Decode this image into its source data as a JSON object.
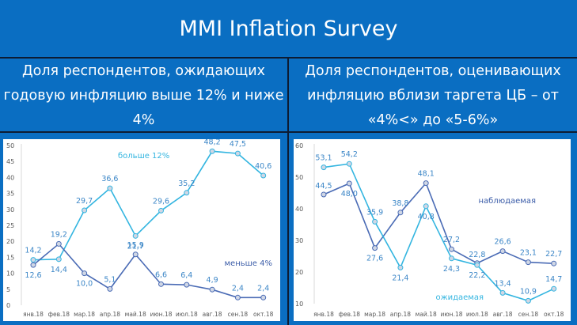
{
  "title": "MMI Inflation Survey",
  "left_header": "Доля респондентов, ожидающих годовую инфляцию выше 12% и ниже 4%",
  "right_header": "Доля респондентов, оценивающих инфляцию вблизи таргета ЦБ – от «4%<» до «5-6%»",
  "colors": {
    "background": "#0a6ec2",
    "light_series": "#33b5e0",
    "dark_series": "#4a6bb5",
    "label_text": "#3b86c7"
  },
  "chart_data": [
    {
      "type": "line",
      "categories": [
        "янв.18",
        "фев.18",
        "мар.18",
        "апр.18",
        "май.18",
        "июн.18",
        "июл.18",
        "авг.18",
        "сен.18",
        "окт.18"
      ],
      "ylim": [
        0,
        50
      ],
      "yticks": [
        0,
        5,
        10,
        15,
        20,
        25,
        30,
        35,
        40,
        45,
        50
      ],
      "grid": false,
      "series": [
        {
          "name": "больше 12%",
          "color": "#33b5e0",
          "values": [
            14.2,
            14.4,
            29.7,
            36.6,
            21.7,
            29.6,
            35.2,
            48.2,
            47.5,
            40.6
          ]
        },
        {
          "name": "меньше 4%",
          "color": "#4a6bb5",
          "values": [
            12.6,
            19.2,
            10.0,
            5.1,
            15.9,
            6.6,
            6.4,
            4.9,
            2.4,
            2.4
          ]
        }
      ],
      "value_labels": [
        [
          "14,2",
          "14,4",
          "29,7",
          "36,6",
          "21,7",
          "29,6",
          "35,2",
          "48,2",
          "47,5",
          "40,6"
        ],
        [
          "12,6",
          "19,2",
          "10,0",
          "5,1",
          "15,9",
          "6,6",
          "6,4",
          "4,9",
          "2,4",
          "2,4"
        ]
      ]
    },
    {
      "type": "line",
      "categories": [
        "янв.18",
        "фев.18",
        "мар.18",
        "апр.18",
        "май.18",
        "июн.18",
        "июл.18",
        "авг.18",
        "сен.18",
        "окт.18"
      ],
      "ylim": [
        10,
        60
      ],
      "yticks": [
        10,
        20,
        30,
        40,
        50,
        60
      ],
      "grid": false,
      "series": [
        {
          "name": "наблюдаемая",
          "color": "#4a6bb5",
          "values": [
            44.5,
            48.0,
            27.6,
            38.8,
            48.1,
            27.2,
            22.8,
            26.6,
            23.1,
            22.7
          ]
        },
        {
          "name": "ожидаемая",
          "color": "#33b5e0",
          "values": [
            53.1,
            54.2,
            35.9,
            21.4,
            40.8,
            24.3,
            22.2,
            13.4,
            10.9,
            14.7
          ]
        }
      ],
      "value_labels": [
        [
          "44,5",
          "48,0",
          "27,6",
          "38,8",
          "48,1",
          "27,2",
          "22,8",
          "26,6",
          "23,1",
          "22,7"
        ],
        [
          "53,1",
          "54,2",
          "35,9",
          "21,4",
          "40,8",
          "24,3",
          "22,2",
          "13,4",
          "10,9",
          "14,7"
        ]
      ]
    }
  ]
}
